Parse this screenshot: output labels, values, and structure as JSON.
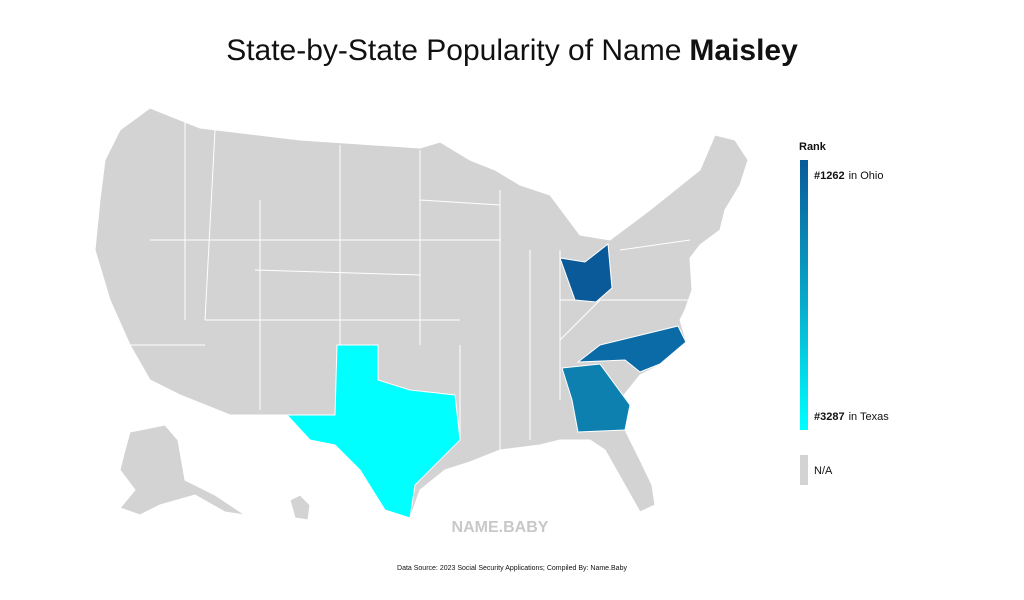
{
  "header": {
    "title": "State-by-State Popularity of Name",
    "name": "Maisley"
  },
  "legend": {
    "title": "Rank",
    "top": {
      "rank": "#1262",
      "label": "in Ohio"
    },
    "bottom": {
      "rank": "#3287",
      "label": "in Texas"
    },
    "na": "N/A"
  },
  "watermark": "NAME.BABY",
  "footer": {
    "source": "Data Source: 2023 Social Security Applications; Compiled By: Name.Baby"
  }
}
